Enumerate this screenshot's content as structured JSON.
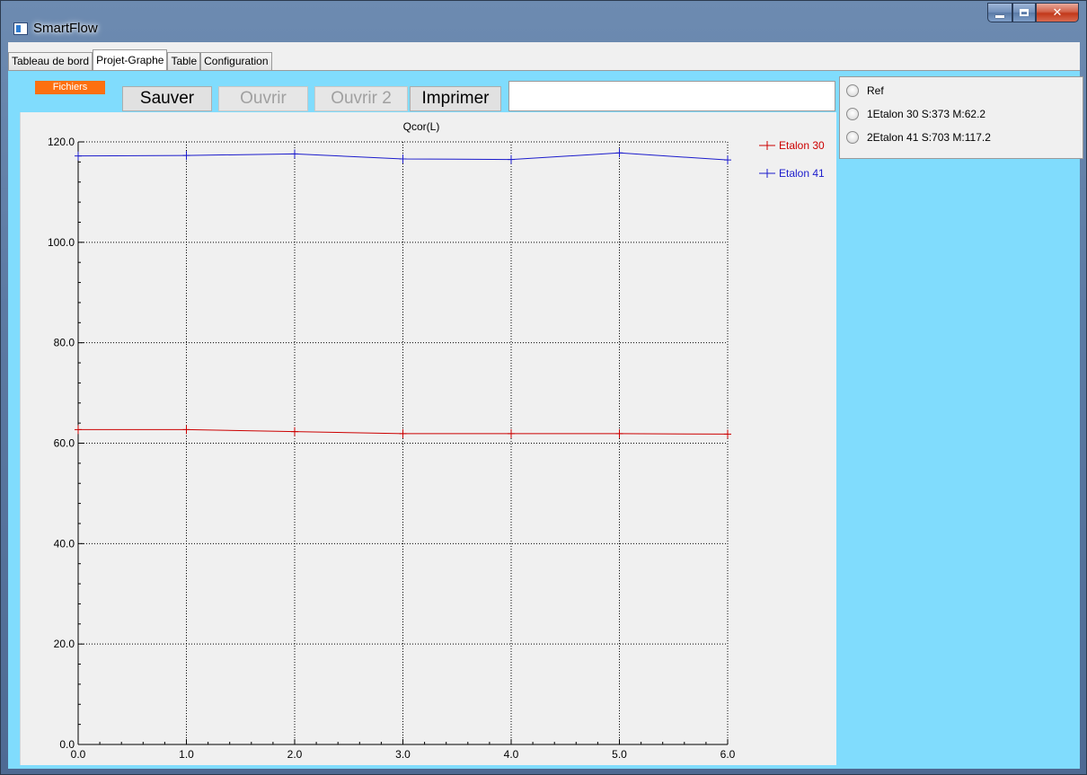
{
  "window": {
    "title": "SmartFlow",
    "app_icon": "app-window-icon"
  },
  "tabs": [
    {
      "label": "Tableau de bord",
      "active": false
    },
    {
      "label": "Projet-Graphe",
      "active": true
    },
    {
      "label": "Table",
      "active": false
    },
    {
      "label": "Configuration",
      "active": false
    }
  ],
  "toolbar": {
    "fichiers_label": "Fichiers",
    "save_label": "Sauver",
    "open_label": "Ouvrir",
    "open2_label": "Ouvrir 2",
    "print_label": "Imprimer",
    "path_value": ""
  },
  "side_panel": {
    "options": [
      {
        "label": "Ref",
        "checked": false
      },
      {
        "label": "1Etalon 30 S:373 M:62.2",
        "checked": false
      },
      {
        "label": "2Etalon 41 S:703 M:117.2",
        "checked": false
      }
    ]
  },
  "chart_data": {
    "type": "line",
    "title": "Qcor(L)",
    "xlabel": "",
    "ylabel": "",
    "xlim": [
      0,
      6
    ],
    "ylim": [
      0,
      120
    ],
    "x_ticks": [
      "0.0",
      "1.0",
      "2.0",
      "3.0",
      "4.0",
      "5.0",
      "6.0"
    ],
    "y_ticks": [
      "0.0",
      "20.0",
      "40.0",
      "60.0",
      "80.0",
      "100.0",
      "120.0"
    ],
    "grid": true,
    "legend": "top-right",
    "x": [
      0,
      1,
      2,
      3,
      4,
      5,
      6
    ],
    "series": [
      {
        "name": "Etalon 30",
        "color": "#cc0000",
        "values": [
          62.7,
          62.7,
          62.3,
          61.9,
          61.9,
          61.9,
          61.8
        ]
      },
      {
        "name": "Etalon 41",
        "color": "#1c1ccc",
        "values": [
          117.2,
          117.3,
          117.6,
          116.6,
          116.5,
          117.8,
          116.4
        ]
      }
    ]
  }
}
